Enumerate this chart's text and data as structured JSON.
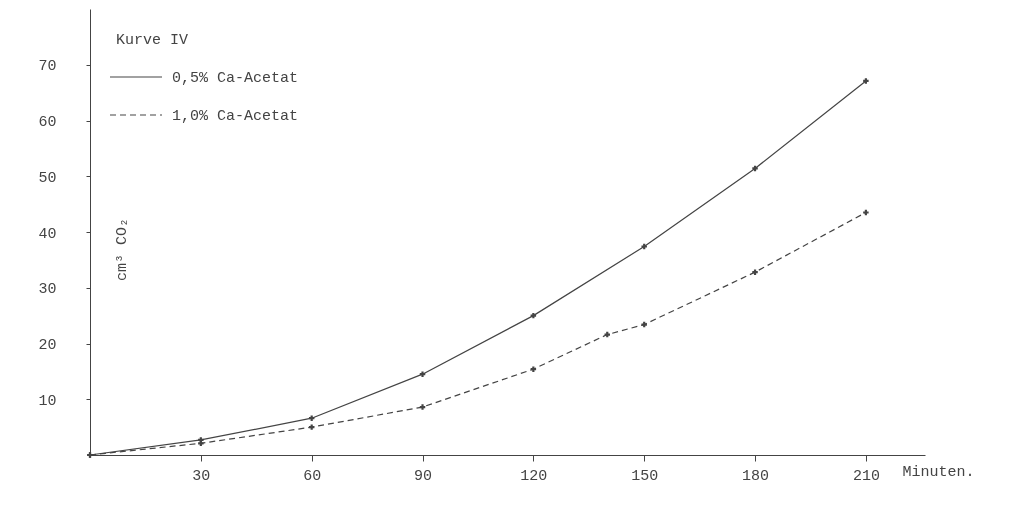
{
  "chart_data": {
    "type": "line",
    "legend_title": "Kurve IV",
    "xlabel": "Minuten.",
    "ylabel": "cm³ CO₂",
    "xlim": [
      0,
      226
    ],
    "ylim": [
      0,
      80
    ],
    "xticks": [
      30,
      60,
      90,
      120,
      150,
      180,
      210
    ],
    "yticks": [
      10,
      20,
      30,
      40,
      50,
      60,
      70
    ],
    "legend": "top left",
    "marker": "cross",
    "grid": false,
    "series": [
      {
        "name": "0,5% Ca-Acetat",
        "color": "#444444",
        "line_style": "solid",
        "x": [
          0,
          30,
          60,
          90,
          120,
          150,
          180,
          210
        ],
        "values": [
          0,
          2.7,
          6.6,
          14.5,
          25.0,
          37.4,
          51.4,
          67.1
        ]
      },
      {
        "name": "1,0% Ca-Acetat",
        "color": "#444444",
        "line_style": "dashed",
        "x": [
          0,
          30,
          60,
          90,
          120,
          140,
          150,
          180,
          210
        ],
        "values": [
          0,
          2.1,
          5.0,
          8.6,
          15.4,
          21.6,
          23.4,
          32.8,
          43.5
        ]
      }
    ]
  }
}
